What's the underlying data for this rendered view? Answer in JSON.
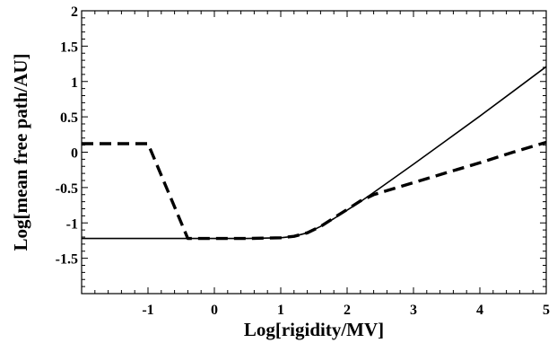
{
  "chart_data": {
    "type": "line",
    "title": "",
    "xlabel": "Log[rigidity/MV]",
    "ylabel": "Log[mean free path/AU]",
    "xlim": [
      -2,
      5
    ],
    "ylim": [
      -2,
      2
    ],
    "grid": false,
    "legend": "none",
    "x_major_ticks": [
      -1,
      0,
      1,
      2,
      3,
      4,
      5
    ],
    "x_tick_labels": [
      "-1",
      "0",
      "1",
      "2",
      "3",
      "4",
      "5"
    ],
    "y_major_ticks": [
      2,
      1.5,
      1,
      0.5,
      0,
      -0.5,
      -1,
      -1.5
    ],
    "y_tick_labels": [
      "2",
      "1.5",
      "1",
      "0.5",
      "0",
      "-0.5",
      "-1",
      "-1.5"
    ],
    "series": [
      {
        "style": "solid",
        "color": "#000000",
        "x": [
          -2,
          -1,
          -0.5,
          0,
          0.5,
          1,
          1.2,
          1.4,
          1.6,
          1.8,
          2,
          2.2,
          2.4,
          3,
          3.5,
          4,
          4.5,
          5
        ],
        "y": [
          -1.22,
          -1.22,
          -1.22,
          -1.22,
          -1.22,
          -1.21,
          -1.19,
          -1.14,
          -1.05,
          -0.94,
          -0.82,
          -0.7,
          -0.57,
          -0.17,
          0.17,
          0.51,
          0.86,
          1.21
        ]
      },
      {
        "style": "dashed",
        "color": "#000000",
        "x": [
          -2,
          -1,
          -0.4,
          0,
          0.5,
          1,
          1.2,
          1.4,
          1.6,
          1.8,
          2,
          2.2,
          2.4,
          3,
          3.5,
          4,
          4.5,
          5
        ],
        "y": [
          0.12,
          0.12,
          -1.22,
          -1.22,
          -1.22,
          -1.21,
          -1.19,
          -1.14,
          -1.05,
          -0.93,
          -0.81,
          -0.69,
          -0.6,
          -0.43,
          -0.29,
          -0.15,
          0.0,
          0.14
        ]
      }
    ]
  }
}
